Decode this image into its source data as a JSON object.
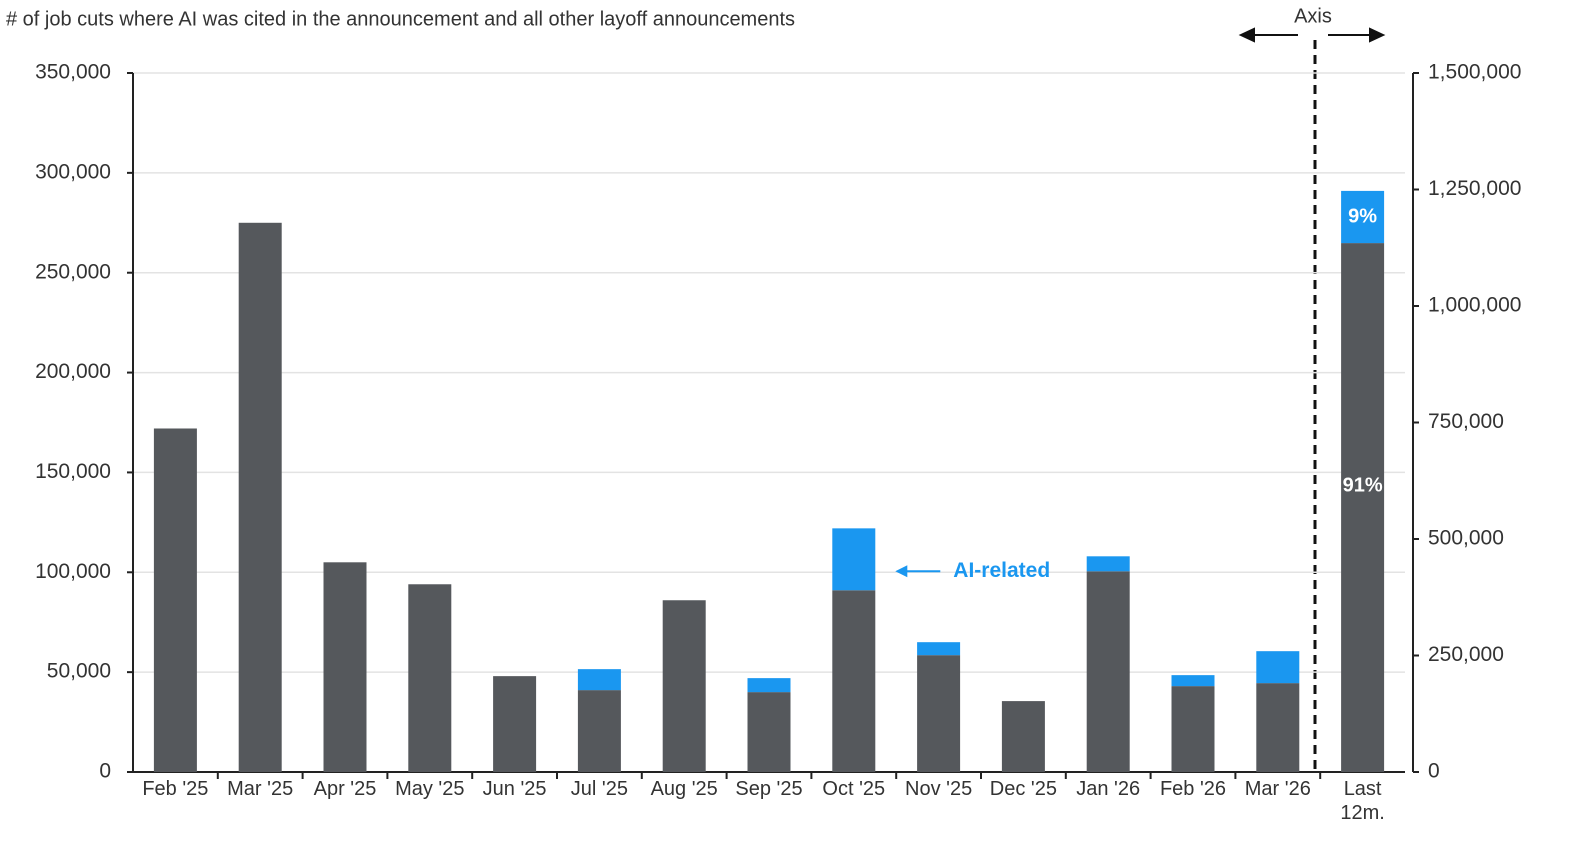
{
  "chart_data": {
    "type": "stacked_bar",
    "title": "# of job cuts where AI was cited in the announcement and all other layoff announcements",
    "categories": [
      "Feb '25",
      "Mar '25",
      "Apr '25",
      "May '25",
      "Jun '25",
      "Jul '25",
      "Aug '25",
      "Sep '25",
      "Oct '25",
      "Nov '25",
      "Dec '25",
      "Jan '26",
      "Feb '26",
      "Mar '26",
      "Last 12m."
    ],
    "series": [
      {
        "color": "#55585c",
        "values": [
          172000,
          275000,
          105000,
          94000,
          48000,
          41000,
          86000,
          40000,
          91000,
          58500,
          35500,
          100500,
          43000,
          44500,
          null
        ]
      },
      {
        "name": "AI-related",
        "color": "#1a97f0",
        "values": [
          0,
          0,
          0,
          0,
          0,
          10500,
          0,
          7000,
          31000,
          6500,
          0,
          7500,
          5500,
          16000,
          null
        ]
      },
      {
        "axis": "y2",
        "color": "#55585c",
        "values": [
          null,
          null,
          null,
          null,
          null,
          null,
          null,
          null,
          null,
          null,
          null,
          null,
          null,
          null,
          1135000
        ],
        "value_labels": [
          null,
          null,
          null,
          null,
          null,
          null,
          null,
          null,
          null,
          null,
          null,
          null,
          null,
          null,
          "91%"
        ]
      },
      {
        "axis": "y2",
        "color": "#1a97f0",
        "values": [
          null,
          null,
          null,
          null,
          null,
          null,
          null,
          null,
          null,
          null,
          null,
          null,
          null,
          null,
          112000
        ],
        "value_labels": [
          null,
          null,
          null,
          null,
          null,
          null,
          null,
          null,
          null,
          null,
          null,
          null,
          null,
          null,
          "9%"
        ]
      }
    ],
    "annotations": [
      "Axis"
    ],
    "ylim": [
      0,
      350000
    ],
    "yticks": [
      0,
      {
        "value": 50000,
        "label": "50,000"
      },
      {
        "value": 100000,
        "label": "100,000"
      },
      {
        "value": 150000,
        "label": "150,000"
      },
      {
        "value": 200000,
        "label": "200,000"
      },
      {
        "value": 250000,
        "label": "250,000"
      },
      {
        "value": 300000,
        "label": "300,000"
      },
      {
        "value": 350000,
        "label": "350,000"
      }
    ],
    "y2lim": [
      0,
      1500000
    ],
    "y2ticks": [
      0,
      {
        "value": 250000,
        "label": "250,000"
      },
      {
        "value": 500000,
        "label": "500,000"
      },
      {
        "value": 750000,
        "label": "750,000"
      },
      {
        "value": 1000000,
        "label": "1,000,000"
      },
      {
        "value": 1250000,
        "label": "1,250,000"
      },
      {
        "value": 1500000,
        "label": "1,500,000"
      }
    ],
    "grid": true
  }
}
